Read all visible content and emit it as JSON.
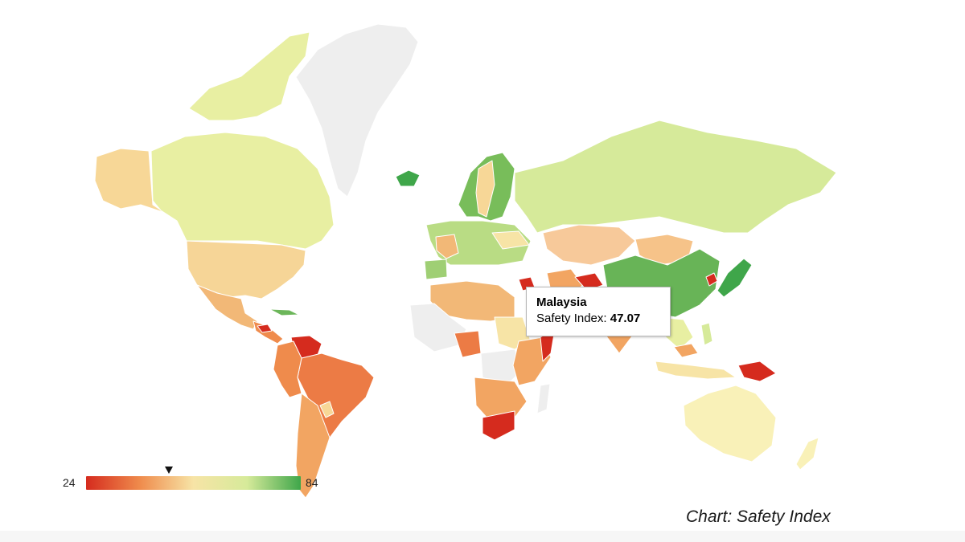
{
  "legend": {
    "min_label": "24",
    "max_label": "84",
    "min_value": 24,
    "max_value": 84,
    "marker_value": 47.07,
    "gradient_colors": [
      "#d52b1e",
      "#ef8b4c",
      "#f7e4a6",
      "#d6ea9a",
      "#3fa64a"
    ]
  },
  "tooltip": {
    "country": "Malaysia",
    "metric_label": "Safety Index: ",
    "value": "47.07"
  },
  "caption": "Chart: Safety Index",
  "colors": {
    "no_data": "#eeeeee",
    "background": "#ffffff"
  }
}
